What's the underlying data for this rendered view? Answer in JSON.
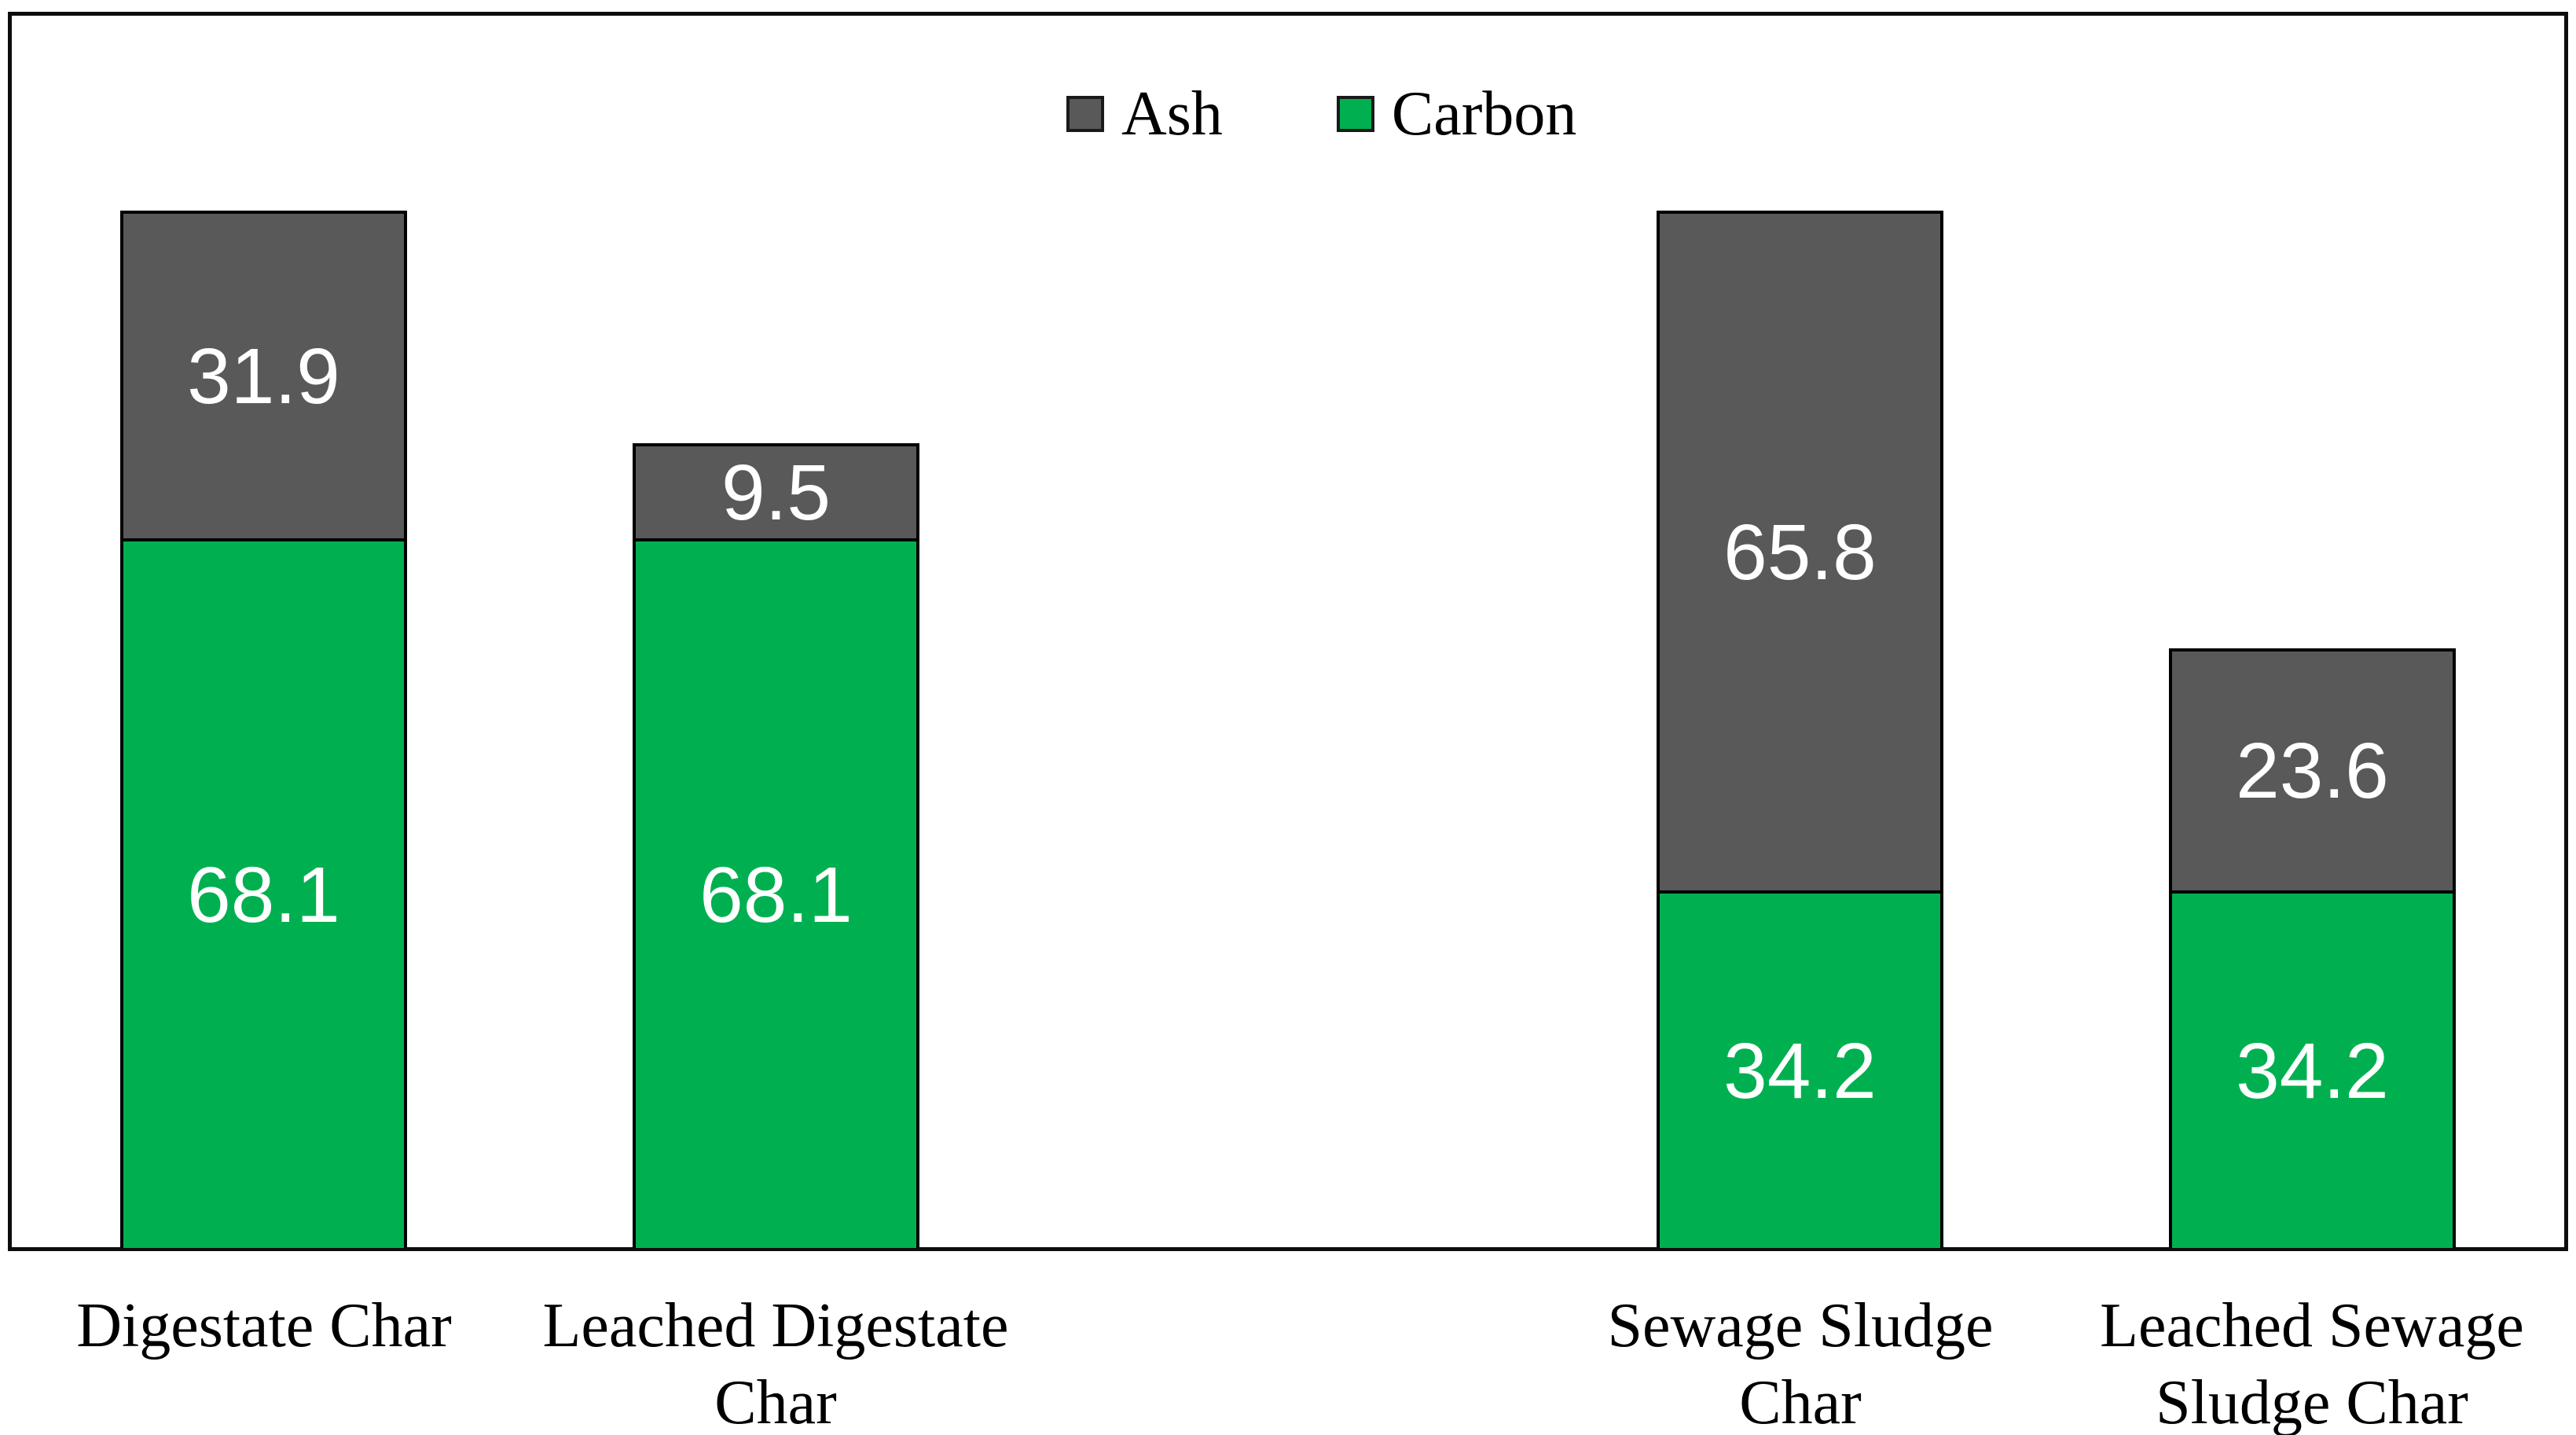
{
  "chart_data": {
    "type": "bar",
    "subtype": "stacked",
    "title": "",
    "grid": false,
    "ylim": [
      0,
      120
    ],
    "y_axis_visible": false,
    "legend": {
      "position": "top-center",
      "entries": [
        {
          "label": "Ash",
          "color": "#595959"
        },
        {
          "label": "Carbon",
          "color": "#00B050"
        }
      ]
    },
    "categories": [
      {
        "label": "Digestate Char",
        "label_lines": [
          "Digestate Char"
        ]
      },
      {
        "label": "Leached Digestate Char",
        "label_lines": [
          "Leached Digestate",
          "Char"
        ]
      },
      {
        "label": "Sewage Sludge Char",
        "label_lines": [
          "Sewage Sludge",
          "Char"
        ]
      },
      {
        "label": "Leached Sewage Sludge Char",
        "label_lines": [
          "Leached Sewage",
          "Sludge Char"
        ]
      }
    ],
    "series": [
      {
        "name": "Carbon",
        "color": "#00B050",
        "values": [
          68.1,
          68.1,
          34.2,
          34.2
        ]
      },
      {
        "name": "Ash",
        "color": "#595959",
        "values": [
          31.9,
          9.5,
          65.8,
          23.6
        ]
      }
    ],
    "data_label_color": "#FFFFFF",
    "colors": {
      "carbon_green": "#00B050",
      "ash_gray": "#595959",
      "bar_border": "#000000",
      "plot_border": "#0d0d0d",
      "background": "#ffffff"
    }
  }
}
